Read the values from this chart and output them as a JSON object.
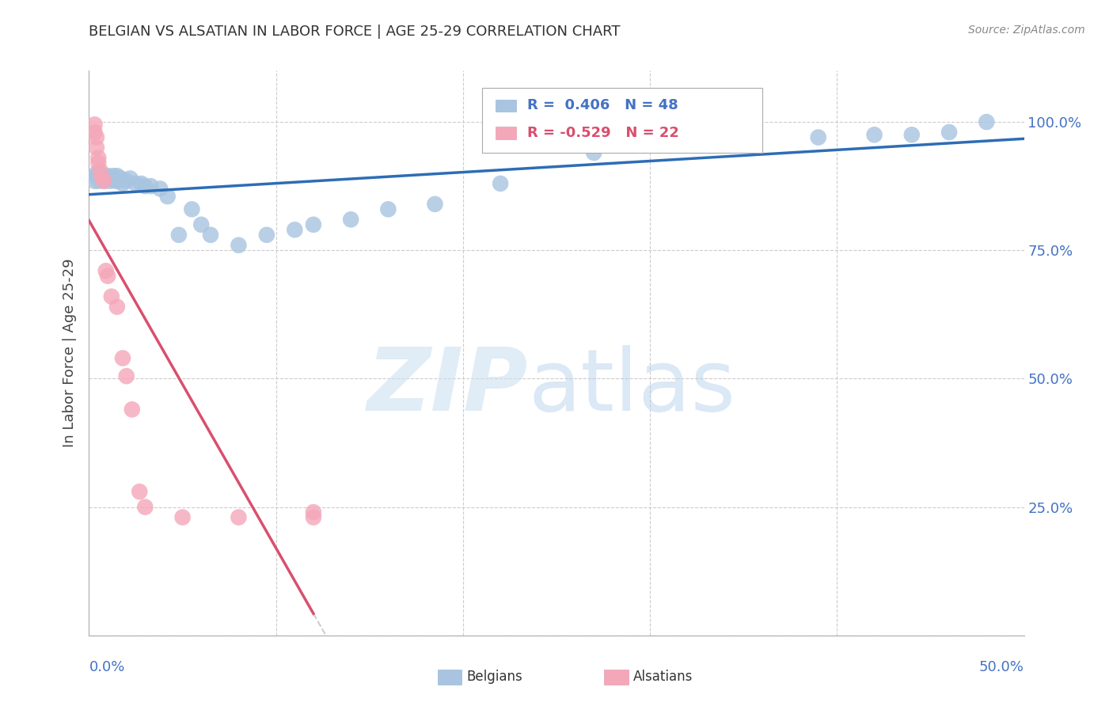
{
  "title": "BELGIAN VS ALSATIAN IN LABOR FORCE | AGE 25-29 CORRELATION CHART",
  "source": "Source: ZipAtlas.com",
  "ylabel": "In Labor Force | Age 25-29",
  "xlim": [
    0.0,
    0.5
  ],
  "ylim": [
    0.0,
    1.1
  ],
  "yticks": [
    0.0,
    0.25,
    0.5,
    0.75,
    1.0
  ],
  "ytick_labels": [
    "",
    "25.0%",
    "50.0%",
    "75.0%",
    "100.0%"
  ],
  "xticks": [
    0.0,
    0.1,
    0.2,
    0.3,
    0.4,
    0.5
  ],
  "belgian_color": "#a8c4e0",
  "alsatian_color": "#f4a7b9",
  "belgian_line_color": "#2d6db5",
  "alsatian_line_color": "#d94f6e",
  "alsatian_line_ext_color": "#cccccc",
  "grid_color": "#cccccc",
  "title_color": "#333333",
  "right_axis_color": "#4472c4",
  "belgians_x": [
    0.003,
    0.004,
    0.004,
    0.005,
    0.005,
    0.006,
    0.006,
    0.007,
    0.008,
    0.008,
    0.009,
    0.01,
    0.011,
    0.012,
    0.013,
    0.014,
    0.015,
    0.016,
    0.017,
    0.018,
    0.02,
    0.022,
    0.025,
    0.028,
    0.03,
    0.033,
    0.038,
    0.042,
    0.048,
    0.055,
    0.06,
    0.065,
    0.08,
    0.095,
    0.11,
    0.12,
    0.14,
    0.16,
    0.185,
    0.22,
    0.27,
    0.31,
    0.355,
    0.39,
    0.42,
    0.44,
    0.46,
    0.48
  ],
  "belgians_y": [
    0.885,
    0.895,
    0.9,
    0.885,
    0.9,
    0.9,
    0.89,
    0.895,
    0.885,
    0.895,
    0.89,
    0.895,
    0.885,
    0.89,
    0.895,
    0.885,
    0.895,
    0.885,
    0.89,
    0.88,
    0.885,
    0.89,
    0.88,
    0.88,
    0.875,
    0.875,
    0.87,
    0.855,
    0.78,
    0.83,
    0.8,
    0.78,
    0.76,
    0.78,
    0.79,
    0.8,
    0.81,
    0.83,
    0.84,
    0.88,
    0.94,
    0.96,
    0.97,
    0.97,
    0.975,
    0.975,
    0.98,
    1.0
  ],
  "alsatians_x": [
    0.003,
    0.003,
    0.004,
    0.004,
    0.005,
    0.005,
    0.006,
    0.007,
    0.008,
    0.009,
    0.01,
    0.012,
    0.015,
    0.018,
    0.02,
    0.023,
    0.027,
    0.03,
    0.05,
    0.08,
    0.12,
    0.12
  ],
  "alsatians_y": [
    0.995,
    0.98,
    0.97,
    0.95,
    0.93,
    0.92,
    0.905,
    0.89,
    0.885,
    0.71,
    0.7,
    0.66,
    0.64,
    0.54,
    0.505,
    0.44,
    0.28,
    0.25,
    0.23,
    0.23,
    0.24,
    0.23
  ]
}
